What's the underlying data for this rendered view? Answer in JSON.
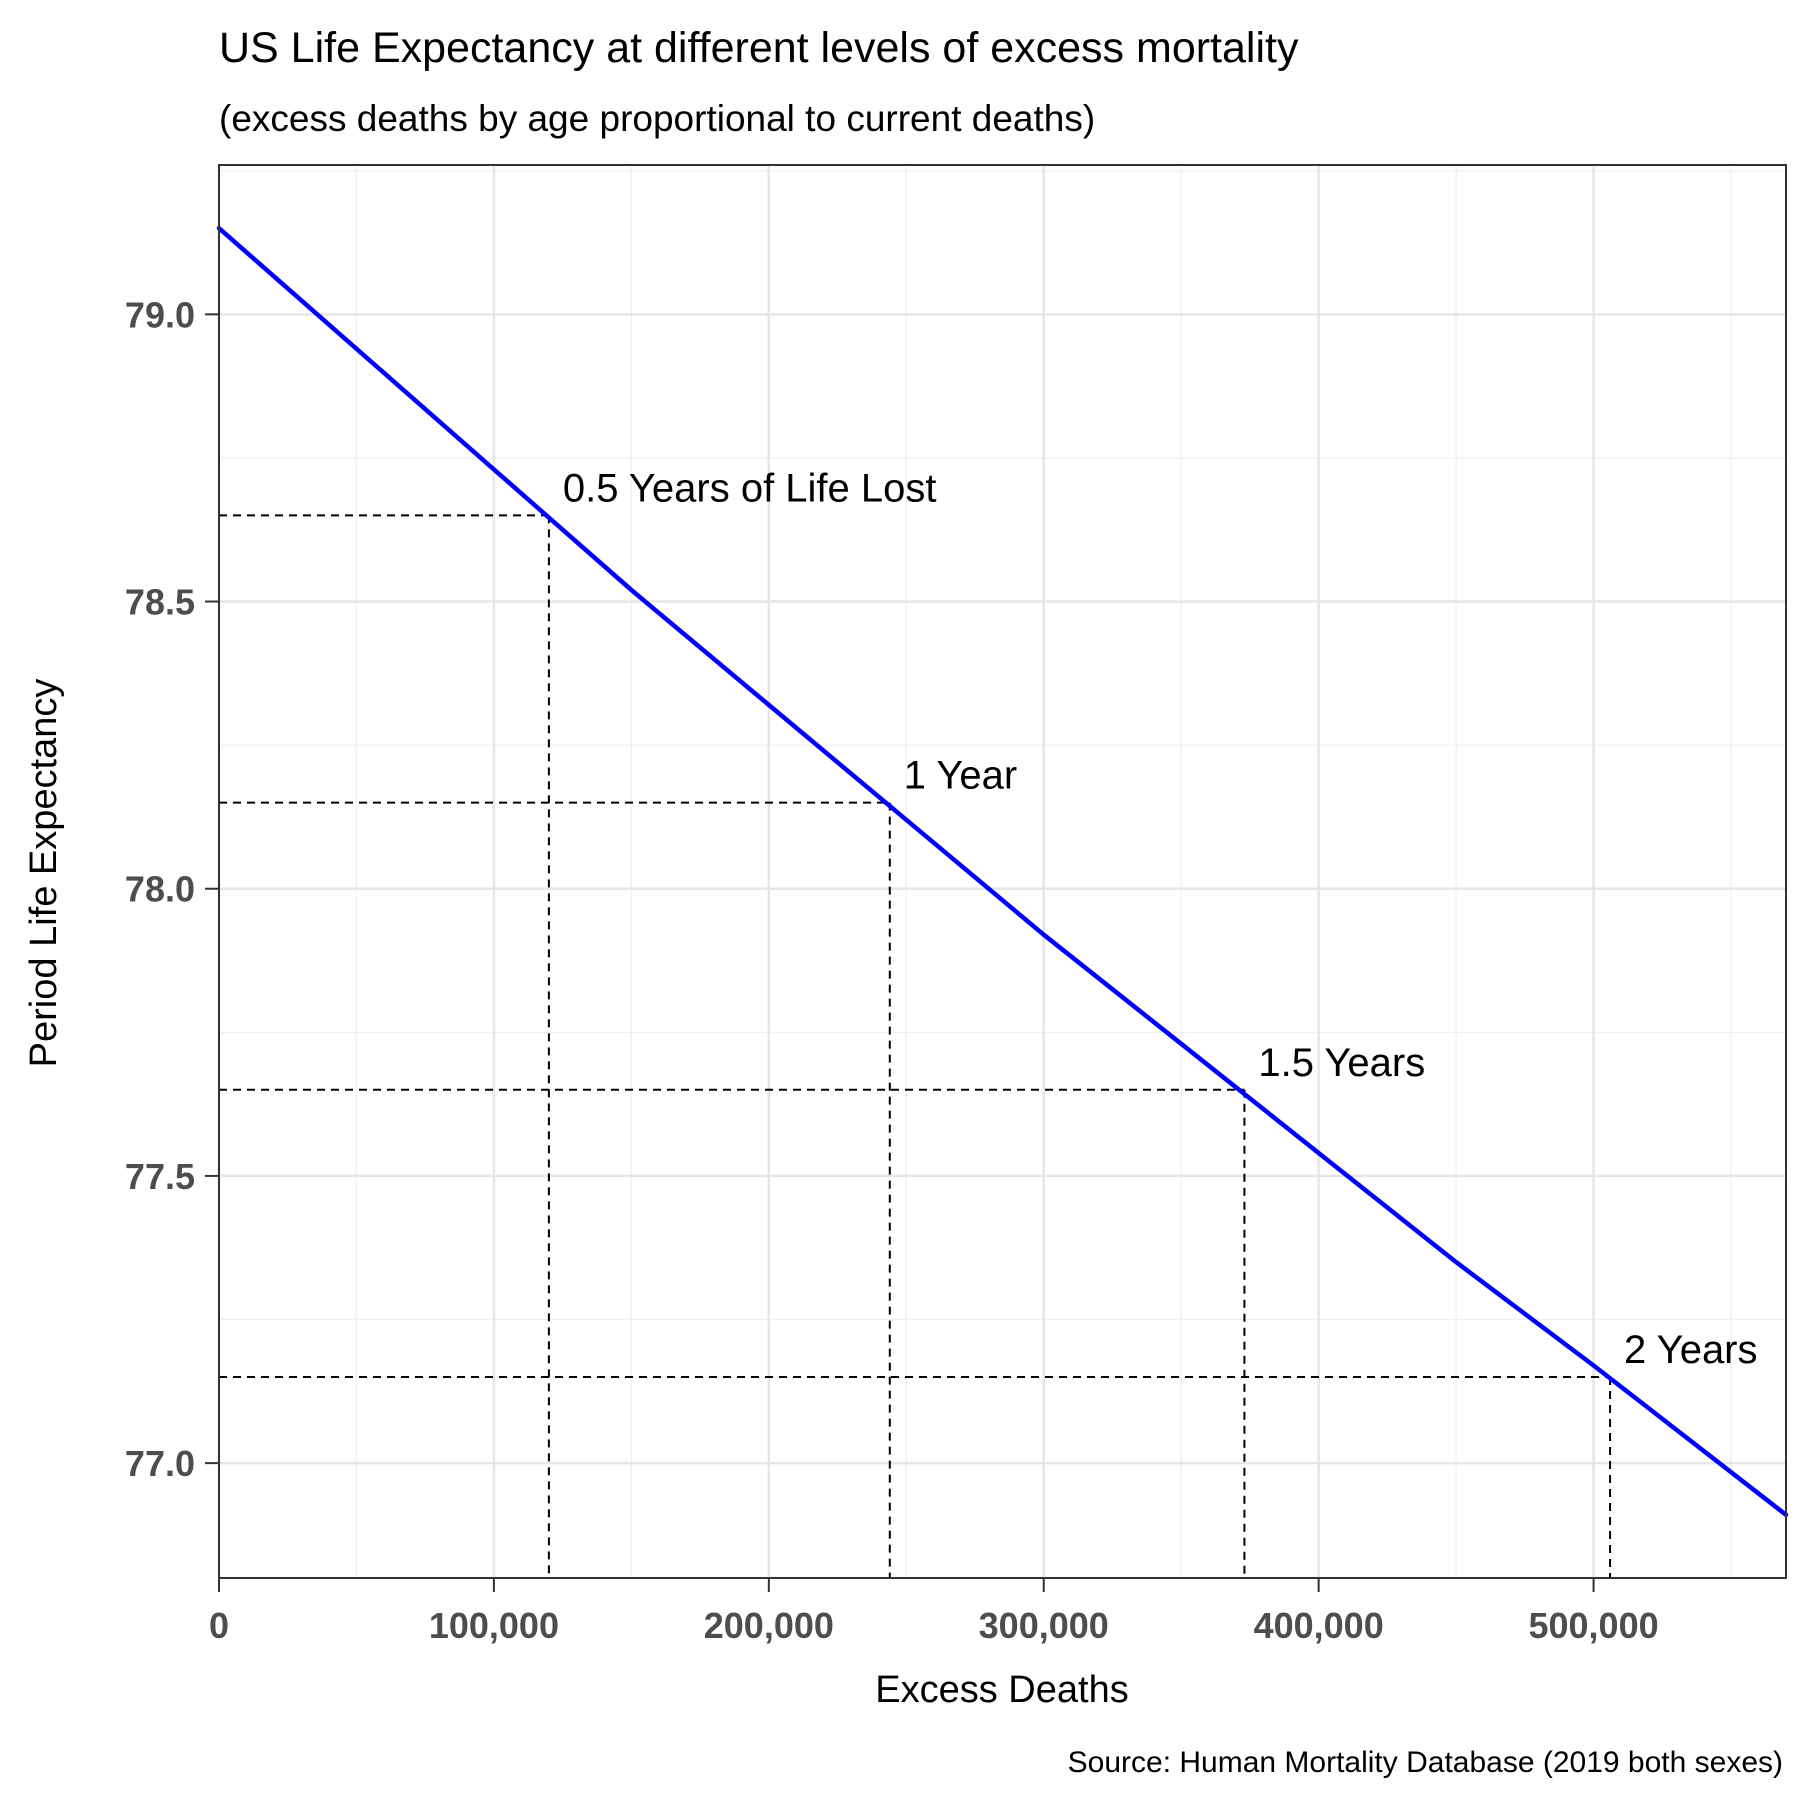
{
  "chart_data": {
    "type": "line",
    "title": "US Life Expectancy at different levels of excess mortality",
    "subtitle": "(excess deaths by age proportional to current deaths)",
    "xlabel": "Excess Deaths",
    "ylabel": "Period Life Expectancy",
    "caption": "Source: Human Mortality Database (2019 both sexes)",
    "xlim": [
      0,
      570000
    ],
    "ylim": [
      76.8,
      79.26
    ],
    "x_ticks": [
      0,
      100000,
      200000,
      300000,
      400000,
      500000
    ],
    "x_tick_labels": [
      "0",
      "100,000",
      "200,000",
      "300,000",
      "400,000",
      "500,000"
    ],
    "y_ticks": [
      77.0,
      77.5,
      78.0,
      78.5,
      79.0
    ],
    "y_tick_labels": [
      "77.0",
      "77.5",
      "78.0",
      "78.5",
      "79.0"
    ],
    "grid": true,
    "series": [
      {
        "color": "#0000ff",
        "x": [
          0,
          50000,
          100000,
          150000,
          200000,
          250000,
          300000,
          350000,
          400000,
          450000,
          500000,
          570000
        ],
        "y": [
          79.15,
          78.94,
          78.73,
          78.52,
          78.32,
          78.12,
          77.92,
          77.73,
          77.54,
          77.35,
          77.17,
          76.91
        ]
      }
    ],
    "reference_lines": [
      {
        "x": 120000,
        "y": 78.65,
        "label": "0.5 Years of Life Lost"
      },
      {
        "x": 244000,
        "y": 78.15,
        "label": "1 Year"
      },
      {
        "x": 373000,
        "y": 77.65,
        "label": "1.5 Years"
      },
      {
        "x": 506000,
        "y": 77.15,
        "label": "2 Years"
      }
    ]
  }
}
